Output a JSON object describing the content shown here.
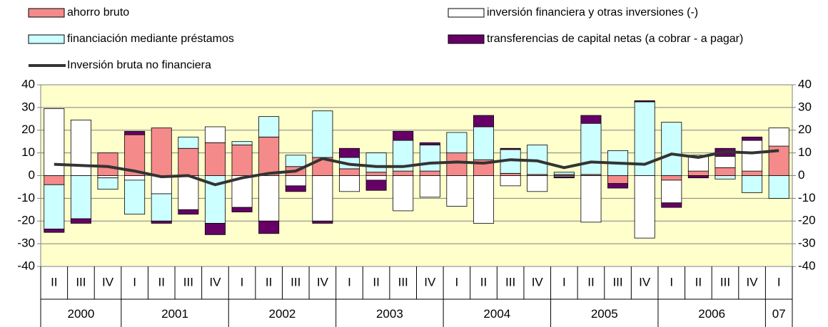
{
  "chart_data": {
    "type": "bar",
    "groups": [
      {
        "label": "2000",
        "quarters": [
          "II",
          "III",
          "IV"
        ]
      },
      {
        "label": "2001",
        "quarters": [
          "I",
          "II",
          "III",
          "IV"
        ]
      },
      {
        "label": "2002",
        "quarters": [
          "I",
          "II",
          "III",
          "IV"
        ]
      },
      {
        "label": "2003",
        "quarters": [
          "I",
          "II",
          "III",
          "IV"
        ]
      },
      {
        "label": "2004",
        "quarters": [
          "I",
          "II",
          "III",
          "IV"
        ]
      },
      {
        "label": "2005",
        "quarters": [
          "I",
          "II",
          "III",
          "IV"
        ]
      },
      {
        "label": "2006",
        "quarters": [
          "I",
          "II",
          "III",
          "IV"
        ]
      },
      {
        "label": "07",
        "quarters": [
          "I"
        ]
      }
    ],
    "series": [
      {
        "name": "ahorro bruto",
        "color": "#f58a8a",
        "values": [
          -4,
          0,
          10,
          18,
          21,
          12,
          14.5,
          13.5,
          17,
          4,
          8,
          3,
          1.5,
          2,
          2,
          10,
          7,
          1,
          0.5,
          0.5,
          0.5,
          -3.5,
          0,
          -2,
          2,
          3.5,
          2,
          13
        ]
      },
      {
        "name": "inversión financiera y otras inversiones (-)",
        "color": "#ffffff",
        "values": [
          29.5,
          24.5,
          -1,
          -2,
          -8,
          -15,
          7,
          -14,
          -20,
          -4.5,
          -20,
          -7,
          -2,
          -15.5,
          -9.5,
          -13.5,
          -21,
          -4.5,
          -7,
          -0.5,
          -20.5,
          0,
          -27.5,
          -10,
          7,
          5,
          13.5,
          8
        ]
      },
      {
        "name": "financiación mediante préstamos",
        "color": "#ccffff",
        "values": [
          -19.5,
          -19,
          -5,
          -15,
          -12,
          5,
          -21,
          1.5,
          9,
          5,
          20.5,
          5,
          8.5,
          13.5,
          11.5,
          9,
          14.5,
          10.5,
          13,
          1,
          22.5,
          11,
          32.5,
          23.5,
          0,
          -1.5,
          -7.5,
          -10
        ]
      },
      {
        "name": "transferencias de capital netas (a cobrar - a pagar)",
        "color": "#660066",
        "values": [
          -1.5,
          -2,
          0,
          1.5,
          -1,
          -2,
          -5,
          -2,
          -5.5,
          -2.5,
          -1,
          4,
          -4.5,
          4,
          1,
          0,
          5,
          0.5,
          0,
          -0.5,
          3.5,
          -2,
          0.5,
          -2,
          -1,
          3.5,
          1.5,
          0
        ]
      }
    ],
    "line": {
      "name": "Inversión bruta no financiera",
      "color": "#333333",
      "values": [
        5,
        4.5,
        4,
        2,
        -0.5,
        0,
        -4,
        -1,
        1,
        2,
        7.5,
        5,
        4,
        4,
        5.5,
        6,
        5.5,
        7,
        6.5,
        3.5,
        6,
        5.5,
        5,
        9.5,
        8,
        10.5,
        10,
        11
      ]
    },
    "ylim": [
      -40,
      40
    ],
    "yticks": [
      -40,
      -30,
      -20,
      -10,
      0,
      10,
      20,
      30,
      40
    ],
    "grid": true,
    "plot_background": "#ffffcc"
  }
}
